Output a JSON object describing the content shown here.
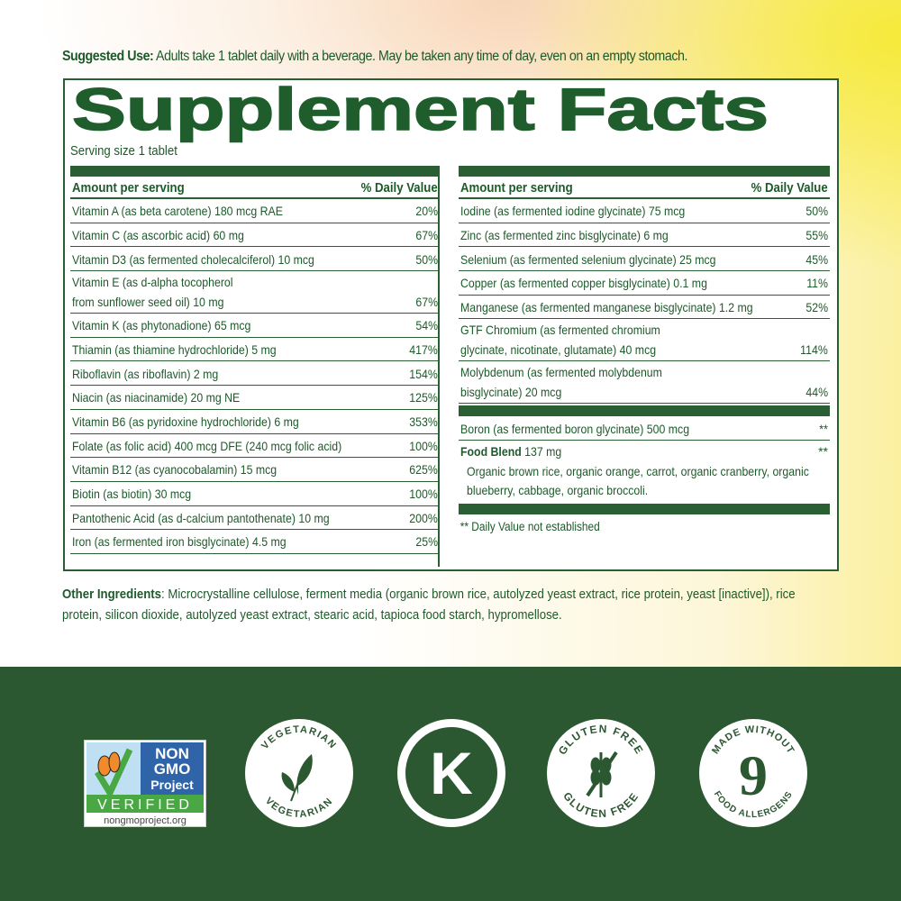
{
  "suggested_use": {
    "label": "Suggested Use:",
    "text": " Adults take 1 tablet daily with a beverage. May be taken any time of day, even on an empty stomach."
  },
  "panel": {
    "title": "Supplement Facts",
    "serving_size": "Serving size 1 tablet",
    "header_amount": "Amount per serving",
    "header_dv": "% Daily Value",
    "left_rows": [
      {
        "name": "Vitamin A (as beta carotene) 180 mcg RAE",
        "dv": "20%"
      },
      {
        "name": "Vitamin C (as ascorbic acid) 60 mg",
        "dv": "67%"
      },
      {
        "name": "Vitamin D3 (as fermented cholecalciferol) 10 mcg",
        "dv": "50%"
      },
      {
        "name": "Vitamin E (as d-alpha tocopherol\nfrom sunflower seed oil) 10 mg",
        "dv": "67%"
      },
      {
        "name": "Vitamin K (as phytonadione) 65 mcg",
        "dv": "54%"
      },
      {
        "name": "Thiamin (as thiamine hydrochloride) 5 mg",
        "dv": "417%"
      },
      {
        "name": "Riboflavin (as riboflavin) 2 mg",
        "dv": "154%"
      },
      {
        "name": "Niacin (as niacinamide) 20 mg NE",
        "dv": "125%"
      },
      {
        "name": "Vitamin B6 (as pyridoxine hydrochloride) 6 mg",
        "dv": "353%"
      },
      {
        "name": "Folate (as folic acid) 400 mcg DFE (240 mcg folic acid)",
        "dv": "100%"
      },
      {
        "name": "Vitamin B12 (as cyanocobalamin) 15 mcg",
        "dv": "625%"
      },
      {
        "name": "Biotin (as biotin) 30 mcg",
        "dv": "100%"
      },
      {
        "name": "Pantothenic Acid (as d-calcium pantothenate) 10 mg",
        "dv": "200%"
      },
      {
        "name": "Iron (as fermented iron bisglycinate) 4.5 mg",
        "dv": "25%"
      }
    ],
    "right_rows": [
      {
        "name": "Iodine (as fermented iodine glycinate) 75 mcg",
        "dv": "50%"
      },
      {
        "name": "Zinc (as fermented zinc bisglycinate) 6 mg",
        "dv": "55%"
      },
      {
        "name": "Selenium (as fermented selenium glycinate) 25 mcg",
        "dv": "45%"
      },
      {
        "name": "Copper (as fermented copper bisglycinate) 0.1 mg",
        "dv": "11%"
      },
      {
        "name": "Manganese (as fermented manganese bisglycinate) 1.2 mg",
        "dv": "52%"
      },
      {
        "name": "GTF Chromium (as fermented chromium\nglycinate, nicotinate, glutamate) 40 mcg",
        "dv": "114%"
      },
      {
        "name": "Molybdenum (as fermented molybdenum\nbisglycinate) 20 mcg",
        "dv": "44%"
      }
    ],
    "boron": {
      "name": "Boron (as fermented boron glycinate) 500 mcg",
      "dv": "**"
    },
    "food_blend": {
      "label": "Food Blend",
      "amount": " 137 mg",
      "dv": "**",
      "desc": "Organic brown rice, organic orange, carrot, organic cranberry, organic blueberry, cabbage, organic broccoli."
    },
    "footnote": "** Daily Value not established"
  },
  "other_ingredients": {
    "label": "Other Ingredients",
    "text": ": Microcrystalline cellulose, ferment media (organic brown rice, autolyzed yeast extract, rice protein, yeast [inactive]), rice protein, silicon dioxide, autolyzed yeast extract, stearic acid, tapioca food starch, hypromellose."
  },
  "badges": {
    "nongmo": {
      "line1": "NON",
      "line2": "GMO",
      "line3": "Project",
      "verified": "VERIFIED",
      "url": "nongmoproject.org"
    },
    "vegetarian": "VEGETARIAN",
    "kosher": "K",
    "gluten_free": "GLUTEN FREE",
    "allergen": {
      "top": "MADE WITHOUT",
      "number": "9",
      "bottom": "FOOD ALLERGENS"
    }
  },
  "colors": {
    "brand_green": "#1f5e2c",
    "band_green": "#2b5731",
    "accent_yellow": "#f6ea3a"
  }
}
